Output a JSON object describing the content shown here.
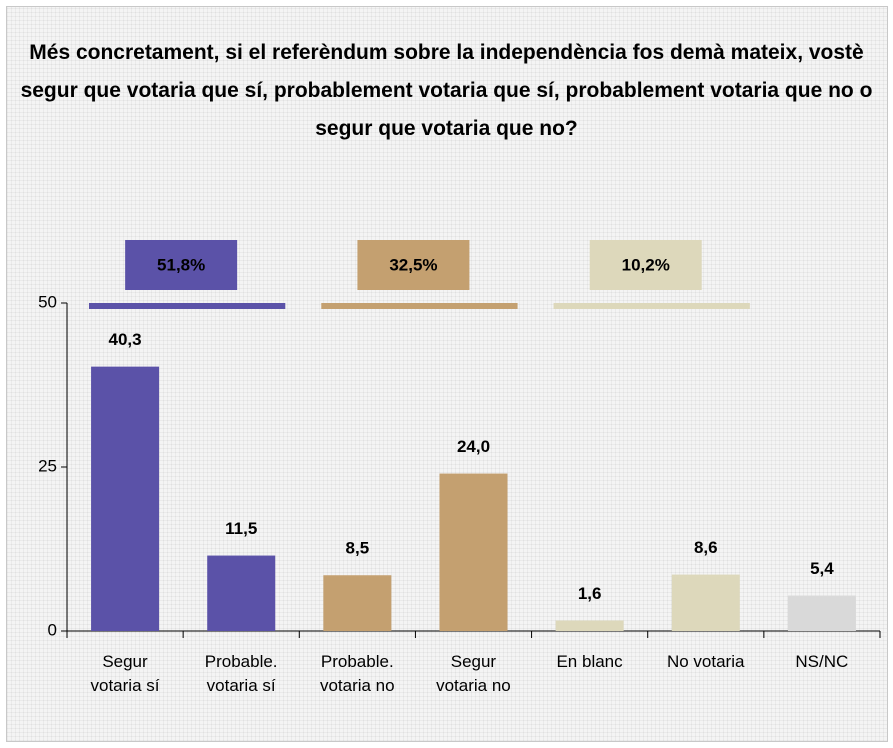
{
  "chart_data": {
    "type": "bar",
    "title": "Més concretament, si el referèndum sobre la independència fos demà mateix, vostè segur que votaria que sí, probablement votaria que sí, probablement votaria que no o segur que votaria que no?",
    "categories": [
      "Segur\nvotaria sí",
      "Probable.\nvotaria sí",
      "Probable.\nvotaria no",
      "Segur\nvotaria no",
      "En blanc",
      "No votaria",
      "NS/NC"
    ],
    "values": [
      40.3,
      11.5,
      8.5,
      24.0,
      1.6,
      8.6,
      5.4
    ],
    "value_labels": [
      "40,3",
      "11,5",
      "8,5",
      "24,0",
      "1,6",
      "8,6",
      "5,4"
    ],
    "colors": [
      "#5b52a8",
      "#5b52a8",
      "#c4a070",
      "#c4a070",
      "#ddd8bb",
      "#ddd8bb",
      "#d9d9d9"
    ],
    "groups": [
      {
        "value": 51.8,
        "label": "51,8%",
        "color": "#5b52a8"
      },
      {
        "value": 32.5,
        "label": "32,5%",
        "color": "#c4a070"
      },
      {
        "value": 10.2,
        "label": "10,2%",
        "color": "#ddd8bb"
      }
    ],
    "ylim": [
      0,
      50
    ],
    "yticks": [
      0,
      25,
      50
    ],
    "grid": false
  }
}
